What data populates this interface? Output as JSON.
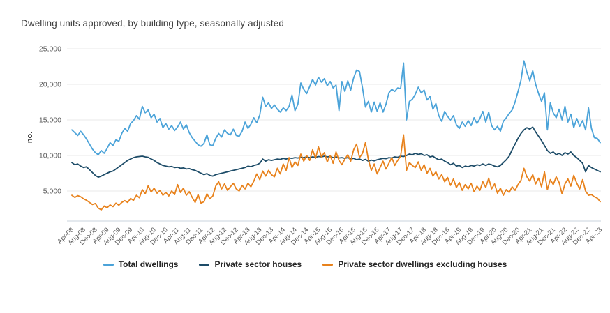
{
  "title": "Dwelling units approved, by building type, seasonally adjusted",
  "chart_data": {
    "type": "line",
    "title": "Dwelling units approved, by building type, seasonally adjusted",
    "xlabel": "",
    "ylabel": "no.",
    "ylim": [
      0,
      25000
    ],
    "grid": "horizontal",
    "legend_position": "bottom",
    "x_unit": "month",
    "x_range": [
      "Apr-08",
      "Apr-23"
    ],
    "months_per_tick": 4,
    "y_ticks": [
      {
        "v": 5000,
        "label": "5,000"
      },
      {
        "v": 10000,
        "label": "10,000"
      },
      {
        "v": 15000,
        "label": "15,000"
      },
      {
        "v": 20000,
        "label": "20,000"
      },
      {
        "v": 25000,
        "label": "25,000"
      }
    ],
    "x_tick_labels": [
      "Apr-08",
      "Aug-08",
      "Dec-08",
      "Apr-09",
      "Aug-09",
      "Dec-09",
      "Apr-10",
      "Aug-10",
      "Dec-10",
      "Apr-11",
      "Aug-11",
      "Dec-11",
      "Apr-12",
      "Aug-12",
      "Dec-12",
      "Apr-13",
      "Aug-13",
      "Dec-13",
      "Apr-14",
      "Aug-14",
      "Dec-14",
      "Apr-15",
      "Aug-15",
      "Dec-15",
      "Apr-16",
      "Aug-16",
      "Dec-16",
      "Apr-17",
      "Aug-17",
      "Dec-17",
      "Apr-18",
      "Aug-18",
      "Dec-18",
      "Apr-19",
      "Aug-19",
      "Dec-19",
      "Apr-20",
      "Aug-20",
      "Dec-20",
      "Apr-21",
      "Aug-21",
      "Dec-21",
      "Apr-22",
      "Aug-22",
      "Dec-22",
      "Apr-23"
    ],
    "axis_colors": {
      "gridline": "#e8e8e8",
      "baseline": "#c9d3dc",
      "tick_text": "#595959",
      "ylabel_text": "#3a3a3a"
    },
    "series": [
      {
        "name": "Total dwellings",
        "color": "#4ba3d9",
        "values": [
          13600,
          13200,
          12800,
          13400,
          12900,
          12300,
          11600,
          10900,
          10400,
          10100,
          10700,
          10300,
          11000,
          11800,
          11400,
          12200,
          12000,
          13100,
          13800,
          13400,
          14500,
          14900,
          15600,
          15100,
          16900,
          16000,
          16400,
          15300,
          15800,
          14700,
          15200,
          13900,
          14500,
          13700,
          14200,
          13500,
          14000,
          14700,
          13700,
          14300,
          13200,
          12500,
          12000,
          11500,
          11300,
          11700,
          12900,
          11500,
          11400,
          12400,
          13100,
          12600,
          13600,
          13100,
          12900,
          13700,
          12800,
          12700,
          13400,
          14700,
          13800,
          14400,
          15300,
          14600,
          15700,
          18200,
          16900,
          17400,
          16600,
          17100,
          16500,
          16100,
          16700,
          16300,
          16900,
          18500,
          16300,
          17200,
          20200,
          19300,
          18700,
          19700,
          20700,
          19900,
          21000,
          20300,
          20800,
          19800,
          20400,
          19500,
          19900,
          16300,
          20400,
          19000,
          20500,
          19200,
          20900,
          22000,
          21800,
          19500,
          16800,
          17600,
          16100,
          17500,
          16200,
          17400,
          16100,
          17200,
          18800,
          19300,
          19000,
          19500,
          19400,
          23000,
          15000,
          17600,
          17900,
          18600,
          19600,
          18800,
          19200,
          17800,
          18300,
          16500,
          17300,
          15600,
          14800,
          16200,
          15500,
          15000,
          15600,
          14300,
          13800,
          14700,
          14100,
          14900,
          14200,
          15300,
          14500,
          15200,
          16200,
          14700,
          16100,
          14200,
          13600,
          14100,
          13400,
          14800,
          15300,
          15900,
          16400,
          17500,
          19000,
          20600,
          23300,
          21700,
          20500,
          21900,
          20000,
          18700,
          17600,
          18800,
          13600,
          17400,
          16000,
          15300,
          16500,
          15000,
          16900,
          14700,
          15800,
          13900,
          15200,
          14100,
          14900,
          13600,
          16700,
          13800,
          12500,
          12400,
          11800
        ]
      },
      {
        "name": "Private sector houses",
        "color": "#1d4c68",
        "values": [
          9000,
          8700,
          8800,
          8500,
          8300,
          8400,
          8000,
          7600,
          7200,
          6950,
          7100,
          7300,
          7500,
          7700,
          7800,
          8100,
          8400,
          8700,
          9000,
          9300,
          9500,
          9700,
          9800,
          9850,
          9900,
          9800,
          9750,
          9500,
          9300,
          9000,
          8800,
          8600,
          8500,
          8400,
          8450,
          8300,
          8350,
          8200,
          8250,
          8100,
          8150,
          8000,
          7900,
          7700,
          7500,
          7300,
          7450,
          7200,
          7100,
          7300,
          7400,
          7500,
          7600,
          7700,
          7800,
          7900,
          8000,
          8100,
          8200,
          8300,
          8500,
          8400,
          8600,
          8700,
          8900,
          9500,
          9200,
          9400,
          9300,
          9400,
          9500,
          9450,
          9600,
          9500,
          9650,
          9600,
          9700,
          9650,
          9750,
          9700,
          9800,
          9700,
          9800,
          9750,
          9850,
          9800,
          9900,
          9800,
          9850,
          9700,
          9800,
          9650,
          9700,
          9600,
          9700,
          9500,
          9600,
          9400,
          9500,
          9300,
          9450,
          9200,
          9350,
          9250,
          9400,
          9500,
          9600,
          9550,
          9700,
          9650,
          9800,
          9750,
          9900,
          9850,
          10000,
          10200,
          10100,
          10300,
          10150,
          10250,
          10000,
          10100,
          9800,
          9900,
          9600,
          9400,
          9500,
          9200,
          9000,
          8700,
          8900,
          8500,
          8600,
          8300,
          8500,
          8400,
          8600,
          8500,
          8700,
          8600,
          8800,
          8600,
          8800,
          8700,
          8500,
          8400,
          8600,
          9000,
          9400,
          9900,
          10800,
          11600,
          12400,
          13100,
          13600,
          13900,
          13700,
          14000,
          13300,
          12700,
          12100,
          11400,
          10700,
          10300,
          10500,
          10100,
          10300,
          10000,
          10400,
          10200,
          10500,
          10000,
          9700,
          9300,
          8900,
          7700,
          8600,
          8300,
          8100,
          7900,
          7700
        ]
      },
      {
        "name": "Private sector dwellings excluding houses",
        "color": "#e8821c",
        "values": [
          4400,
          4100,
          4350,
          4200,
          3900,
          3700,
          3400,
          3100,
          3250,
          2600,
          2350,
          2900,
          2650,
          3050,
          2800,
          3300,
          3000,
          3400,
          3650,
          3400,
          3950,
          3700,
          4400,
          4050,
          5200,
          4600,
          5750,
          4850,
          5400,
          4700,
          5100,
          4400,
          4800,
          4300,
          5000,
          4500,
          5900,
          4800,
          5400,
          4400,
          4900,
          4100,
          3400,
          4500,
          3300,
          3500,
          4600,
          3900,
          4300,
          5700,
          6300,
          5300,
          6000,
          5100,
          5600,
          6100,
          5300,
          5000,
          5800,
          5300,
          6100,
          5600,
          6400,
          7400,
          6600,
          7800,
          7100,
          7900,
          7300,
          7000,
          8200,
          7400,
          8800,
          7900,
          9700,
          8300,
          9100,
          8600,
          10200,
          9200,
          10000,
          9300,
          10800,
          9600,
          11200,
          9800,
          10400,
          9100,
          10000,
          8900,
          10500,
          9300,
          8700,
          9500,
          10100,
          9200,
          10800,
          11600,
          9700,
          10300,
          11800,
          9400,
          7900,
          8800,
          7400,
          8300,
          9200,
          8100,
          8900,
          9700,
          8600,
          9300,
          9900,
          12900,
          7900,
          9000,
          8600,
          8300,
          9100,
          7900,
          8700,
          7500,
          8200,
          7100,
          7700,
          6700,
          7300,
          6300,
          6900,
          5800,
          6700,
          5500,
          6200,
          5100,
          5900,
          5300,
          6100,
          4900,
          5700,
          5100,
          6300,
          5500,
          6800,
          5300,
          6000,
          4700,
          5400,
          4400,
          5200,
          4800,
          5600,
          5100,
          5900,
          6500,
          8200,
          7000,
          6400,
          7300,
          6000,
          6800,
          5600,
          7700,
          5200,
          6600,
          5900,
          7000,
          6200,
          4600,
          6000,
          6700,
          5700,
          7200,
          6100,
          5300,
          6600,
          5000,
          4400,
          4500,
          4200,
          4000,
          3500
        ]
      }
    ]
  },
  "legend": {
    "items": [
      "Total dwellings",
      "Private sector houses",
      "Private sector dwellings excluding houses"
    ]
  }
}
